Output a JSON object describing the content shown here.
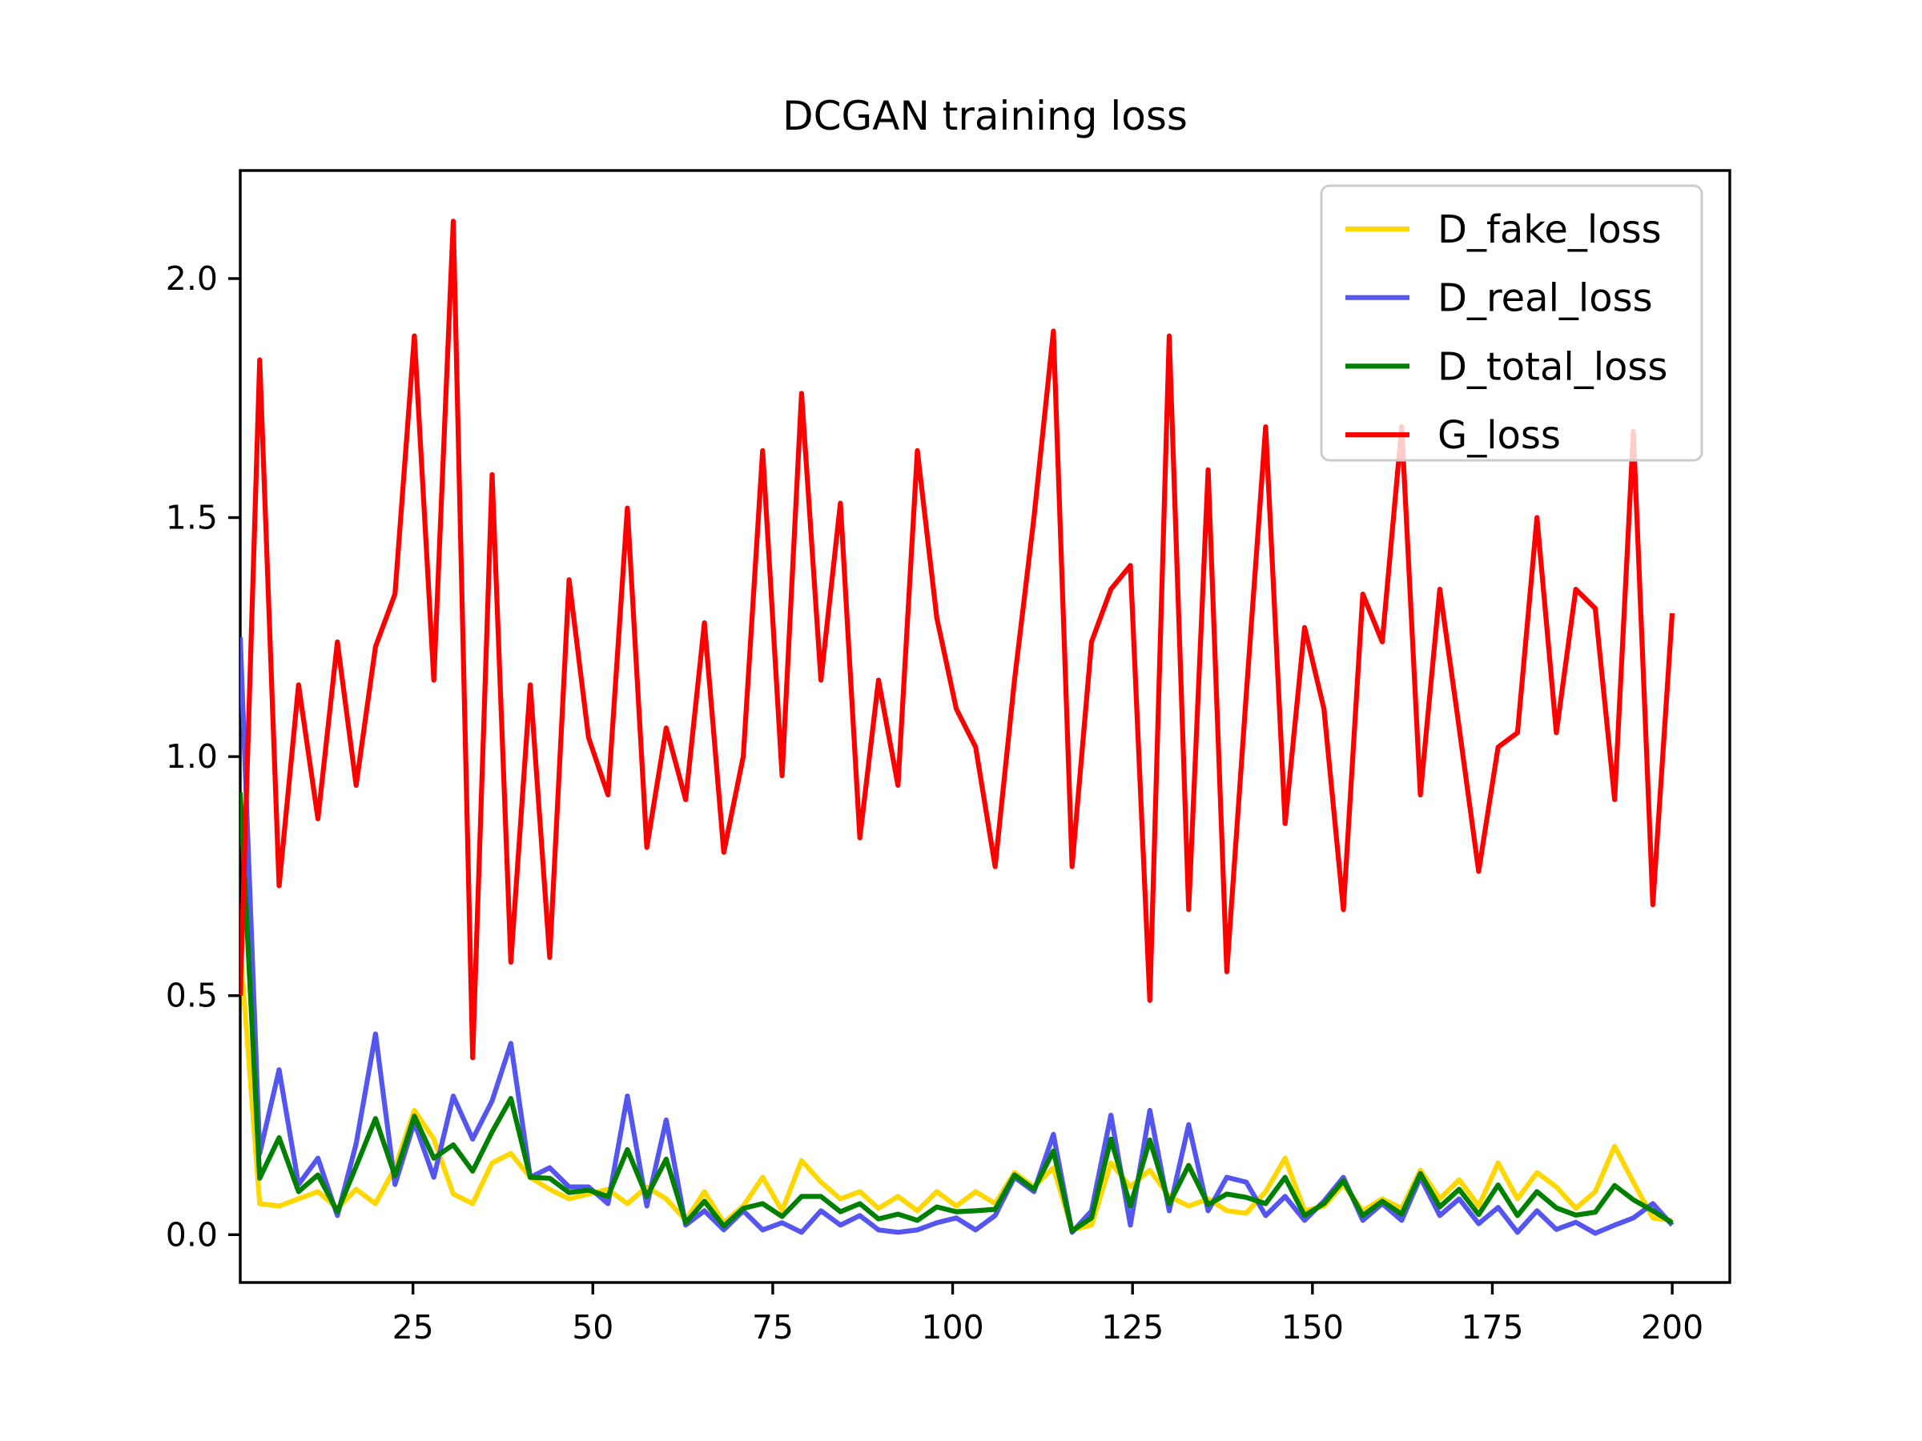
{
  "title": "DCGAN training loss",
  "chart_data": {
    "type": "line",
    "title": "DCGAN training loss",
    "xlabel": "",
    "ylabel": "",
    "grid": false,
    "legend_position": "upper right",
    "xlim": [
      1,
      208
    ],
    "ylim": [
      -0.1,
      2.226
    ],
    "xticks": [
      25,
      50,
      75,
      100,
      125,
      150,
      175,
      200
    ],
    "xtick_labels": [
      "25",
      "50",
      "75",
      "100",
      "125",
      "150",
      "175",
      "200"
    ],
    "yticks": [
      0.0,
      0.5,
      1.0,
      1.5,
      2.0
    ],
    "ytick_labels": [
      "0.0",
      "0.5",
      "1.0",
      "1.5",
      "2.0"
    ],
    "x": [
      1,
      3.7,
      6.4,
      9.1,
      11.8,
      14.5,
      17.1,
      19.8,
      22.5,
      25.2,
      27.9,
      30.6,
      33.3,
      36,
      38.6,
      41.3,
      44,
      46.7,
      49.4,
      52.1,
      54.8,
      57.5,
      60.2,
      62.9,
      65.5,
      68.2,
      70.9,
      73.6,
      76.3,
      79,
      81.7,
      84.4,
      87.1,
      89.7,
      92.4,
      95.1,
      97.8,
      100.5,
      103.2,
      105.9,
      108.6,
      111.3,
      114,
      116.6,
      119.3,
      122,
      124.7,
      127.4,
      130.1,
      132.8,
      135.5,
      138.1,
      140.8,
      143.5,
      146.2,
      148.9,
      151.6,
      154.3,
      157,
      159.7,
      162.4,
      165,
      167.7,
      170.4,
      173.1,
      175.8,
      178.5,
      181.2,
      183.9,
      186.6,
      189.3,
      192,
      194.6,
      197.3,
      200
    ],
    "series": [
      {
        "name": "D_fake_loss",
        "color": "#FFD700",
        "values": [
          0.6,
          0.065,
          0.06,
          0.075,
          0.09,
          0.055,
          0.095,
          0.065,
          0.14,
          0.26,
          0.2,
          0.085,
          0.065,
          0.15,
          0.17,
          0.12,
          0.095,
          0.075,
          0.085,
          0.095,
          0.065,
          0.1,
          0.075,
          0.03,
          0.09,
          0.025,
          0.06,
          0.12,
          0.05,
          0.155,
          0.11,
          0.075,
          0.09,
          0.055,
          0.08,
          0.05,
          0.09,
          0.06,
          0.09,
          0.065,
          0.13,
          0.1,
          0.14,
          0.01,
          0.02,
          0.15,
          0.1,
          0.135,
          0.08,
          0.06,
          0.075,
          0.05,
          0.045,
          0.09,
          0.16,
          0.05,
          0.06,
          0.105,
          0.05,
          0.075,
          0.055,
          0.135,
          0.075,
          0.115,
          0.06,
          0.15,
          0.075,
          0.13,
          0.1,
          0.055,
          0.09,
          0.185,
          0.11,
          0.035,
          0.03
        ]
      },
      {
        "name": "D_real_loss",
        "color": "#5555F0",
        "values": [
          1.25,
          0.17,
          0.345,
          0.105,
          0.16,
          0.04,
          0.19,
          0.42,
          0.105,
          0.235,
          0.12,
          0.29,
          0.2,
          0.28,
          0.4,
          0.12,
          0.14,
          0.1,
          0.1,
          0.065,
          0.29,
          0.06,
          0.24,
          0.02,
          0.05,
          0.01,
          0.05,
          0.01,
          0.025,
          0.005,
          0.05,
          0.02,
          0.04,
          0.01,
          0.005,
          0.01,
          0.025,
          0.035,
          0.01,
          0.04,
          0.12,
          0.09,
          0.21,
          0.005,
          0.05,
          0.25,
          0.02,
          0.26,
          0.05,
          0.23,
          0.05,
          0.12,
          0.11,
          0.04,
          0.08,
          0.03,
          0.07,
          0.12,
          0.03,
          0.065,
          0.03,
          0.12,
          0.04,
          0.075,
          0.023,
          0.057,
          0.005,
          0.05,
          0.011,
          0.026,
          0.003,
          0.02,
          0.035,
          0.065,
          0.02
        ]
      },
      {
        "name": "D_total_loss",
        "color": "#008000",
        "values": [
          0.925,
          0.118,
          0.203,
          0.09,
          0.125,
          0.048,
          0.143,
          0.243,
          0.123,
          0.248,
          0.16,
          0.188,
          0.133,
          0.215,
          0.285,
          0.12,
          0.118,
          0.088,
          0.093,
          0.08,
          0.178,
          0.08,
          0.158,
          0.025,
          0.07,
          0.018,
          0.055,
          0.065,
          0.038,
          0.08,
          0.08,
          0.048,
          0.065,
          0.033,
          0.043,
          0.03,
          0.058,
          0.048,
          0.05,
          0.053,
          0.125,
          0.095,
          0.175,
          0.008,
          0.035,
          0.2,
          0.06,
          0.198,
          0.065,
          0.145,
          0.063,
          0.085,
          0.078,
          0.065,
          0.12,
          0.04,
          0.065,
          0.113,
          0.04,
          0.07,
          0.043,
          0.128,
          0.058,
          0.095,
          0.042,
          0.104,
          0.04,
          0.09,
          0.056,
          0.041,
          0.047,
          0.103,
          0.073,
          0.05,
          0.025
        ]
      },
      {
        "name": "G_loss",
        "color": "#FF0000",
        "values": [
          0.5,
          1.83,
          0.73,
          1.15,
          0.87,
          1.24,
          0.94,
          1.23,
          1.34,
          1.88,
          1.16,
          2.12,
          0.37,
          1.59,
          0.57,
          1.15,
          0.58,
          1.37,
          1.04,
          0.92,
          1.52,
          0.81,
          1.06,
          0.91,
          1.28,
          0.8,
          1.0,
          1.64,
          0.96,
          1.76,
          1.16,
          1.53,
          0.83,
          1.16,
          0.94,
          1.64,
          1.29,
          1.1,
          1.02,
          0.77,
          1.16,
          1.5,
          1.89,
          0.77,
          1.24,
          1.35,
          1.4,
          0.49,
          1.88,
          0.68,
          1.6,
          0.55,
          1.13,
          1.69,
          0.86,
          1.27,
          1.1,
          0.68,
          1.34,
          1.24,
          1.69,
          0.92,
          1.35,
          1.06,
          0.76,
          1.02,
          1.05,
          1.5,
          1.05,
          1.35,
          1.31,
          0.91,
          1.68,
          0.69,
          1.3
        ]
      }
    ],
    "styles": {
      "line_width": 6.2,
      "spine_color": "#000000",
      "spine_width": 3.4,
      "legend_bg": "rgba(255,255,255,0.8)",
      "legend_border": "#cccccc"
    }
  }
}
